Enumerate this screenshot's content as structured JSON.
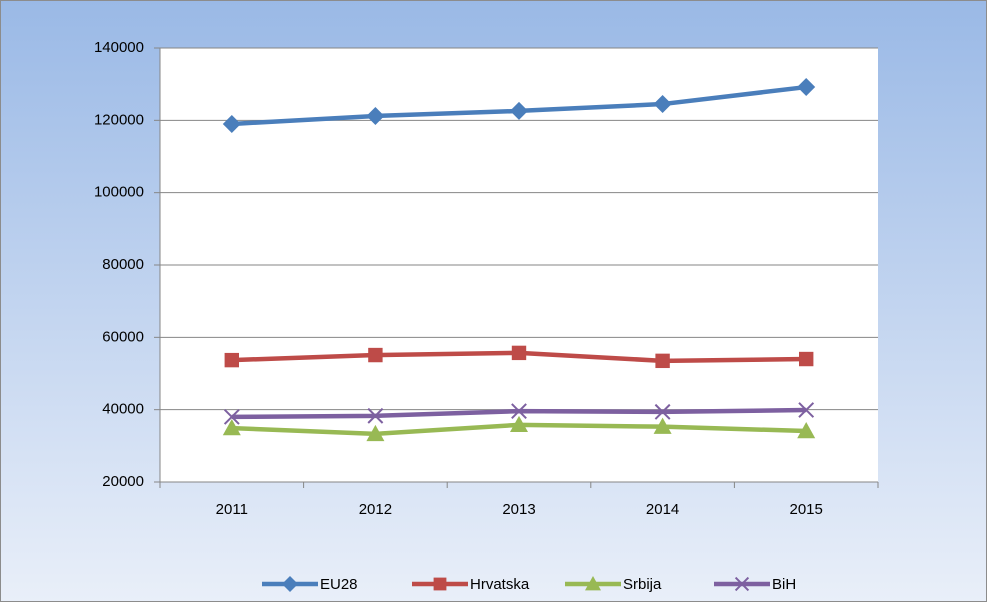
{
  "chart_data": {
    "type": "line",
    "categories": [
      "2011",
      "2012",
      "2013",
      "2014",
      "2015"
    ],
    "series": [
      {
        "name": "EU28",
        "color": "#4a7ebb",
        "marker": "diamond",
        "values": [
          119000,
          121200,
          122600,
          124500,
          129200
        ]
      },
      {
        "name": "Hrvatska",
        "color": "#be4b48",
        "marker": "square",
        "values": [
          53700,
          55100,
          55700,
          53500,
          54000
        ]
      },
      {
        "name": "Srbija",
        "color": "#98b954",
        "marker": "triangle",
        "values": [
          34900,
          33300,
          35800,
          35300,
          34100
        ]
      },
      {
        "name": "BiH",
        "color": "#7d60a0",
        "marker": "x",
        "values": [
          38000,
          38300,
          39600,
          39400,
          39900
        ]
      }
    ],
    "ylim": [
      20000,
      140000
    ],
    "yticks": [
      20000,
      40000,
      60000,
      80000,
      100000,
      120000,
      140000
    ],
    "grid": true,
    "legend": "bottom"
  }
}
